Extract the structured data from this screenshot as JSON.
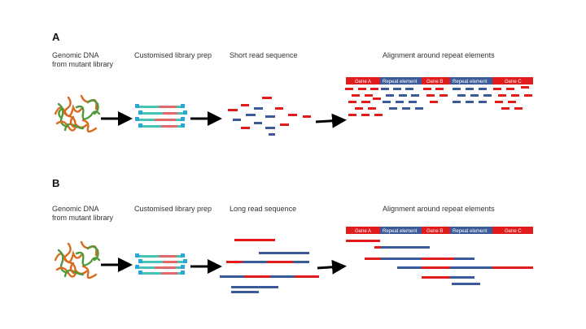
{
  "panels": [
    {
      "letter": "A",
      "labels": {
        "genomic": "Genomic DNA\nfrom mutant library",
        "library_prep": "Customised library prep",
        "sequence": "Short read sequence",
        "alignment": "Alignment around repeat elements"
      },
      "genome_track": [
        "Gene A",
        "Repeat element",
        "Gene B",
        "Repeat element",
        "Gene C"
      ]
    },
    {
      "letter": "B",
      "labels": {
        "genomic": "Genomic DNA\nfrom mutant library",
        "library_prep": "Customised library prep",
        "sequence": "Long read sequence",
        "alignment": "Alignment around repeat elements"
      },
      "genome_track": [
        "Gene A",
        "Repeat element",
        "Gene B",
        "Repeat element",
        "Gene C"
      ]
    }
  ],
  "colors": {
    "gene": "#e01b1b",
    "repeat": "#3a5a99",
    "dna_orange": "#d96b1e",
    "dna_green": "#4f9a3a",
    "library_teal": "#47c2b5",
    "arrow": "#000000"
  }
}
